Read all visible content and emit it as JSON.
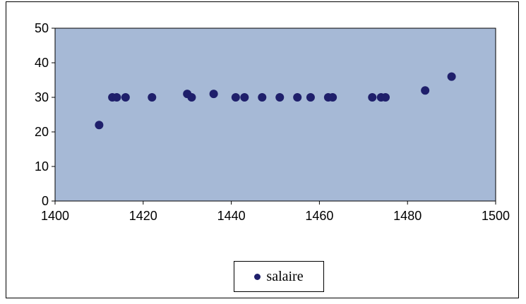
{
  "chart_data": {
    "type": "scatter",
    "title": "",
    "xlabel": "",
    "ylabel": "",
    "xlim": [
      1400,
      1500
    ],
    "ylim": [
      0,
      50
    ],
    "x_ticks": [
      "1400",
      "1420",
      "1440",
      "1460",
      "1480",
      "1500"
    ],
    "y_ticks": [
      "0",
      "10",
      "20",
      "30",
      "40",
      "50"
    ],
    "grid": false,
    "legend_position": "bottom",
    "plot_background": "#a6b9d6",
    "marker_color": "#1f1f6b",
    "series": [
      {
        "name": "salaire",
        "points": [
          [
            1410,
            22
          ],
          [
            1413,
            30
          ],
          [
            1414,
            30
          ],
          [
            1416,
            30
          ],
          [
            1422,
            30
          ],
          [
            1430,
            31
          ],
          [
            1431,
            30
          ],
          [
            1436,
            31
          ],
          [
            1441,
            30
          ],
          [
            1443,
            30
          ],
          [
            1447,
            30
          ],
          [
            1451,
            30
          ],
          [
            1455,
            30
          ],
          [
            1458,
            30
          ],
          [
            1462,
            30
          ],
          [
            1463,
            30
          ],
          [
            1472,
            30
          ],
          [
            1474,
            30
          ],
          [
            1475,
            30
          ],
          [
            1484,
            32
          ],
          [
            1490,
            36
          ]
        ]
      }
    ]
  }
}
